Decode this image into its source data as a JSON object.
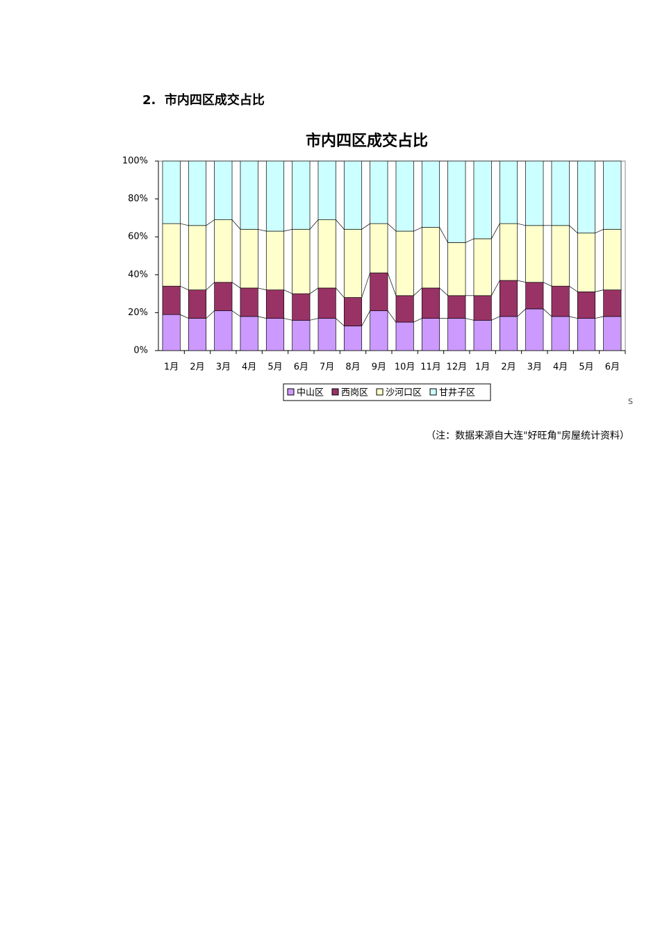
{
  "heading": "2.  市内四区成交占比",
  "chart_data": {
    "type": "stacked_bar",
    "title": "市内四区成交占比",
    "categories": [
      "1月",
      "2月",
      "3月",
      "4月",
      "5月",
      "6月",
      "7月",
      "8月",
      "9月",
      "10月",
      "11月",
      "12月",
      "1月",
      "2月",
      "3月",
      "4月",
      "5月",
      "6月"
    ],
    "series": [
      {
        "name": "中山区",
        "color": "#cc99ff",
        "values": [
          19,
          17,
          21,
          18,
          17,
          16,
          17,
          13,
          21,
          15,
          17,
          17,
          16,
          18,
          22,
          18,
          17,
          18
        ]
      },
      {
        "name": "西岗区",
        "color": "#993366",
        "values": [
          15,
          15,
          15,
          15,
          15,
          14,
          16,
          15,
          20,
          14,
          16,
          12,
          13,
          19,
          14,
          16,
          14,
          14
        ]
      },
      {
        "name": "沙河口区",
        "color": "#ffffcc",
        "values": [
          33,
          34,
          33,
          31,
          31,
          34,
          36,
          36,
          26,
          34,
          32,
          28,
          30,
          30,
          30,
          32,
          31,
          32
        ]
      },
      {
        "name": "甘井子区",
        "color": "#ccffff",
        "values": [
          33,
          34,
          31,
          36,
          37,
          36,
          31,
          36,
          33,
          37,
          35,
          43,
          41,
          33,
          34,
          34,
          38,
          36
        ]
      }
    ],
    "ylim": [
      0,
      100
    ],
    "yticks": [
      {
        "value": 0,
        "label": "0%"
      },
      {
        "value": 20,
        "label": "20%"
      },
      {
        "value": 40,
        "label": "40%"
      },
      {
        "value": 60,
        "label": "60%"
      },
      {
        "value": 80,
        "label": "80%"
      },
      {
        "value": 100,
        "label": "100%"
      }
    ],
    "legend": "bottom"
  },
  "mark": "S",
  "note": "（注：数据来源自大连\"好旺角\"房屋统计资料）"
}
